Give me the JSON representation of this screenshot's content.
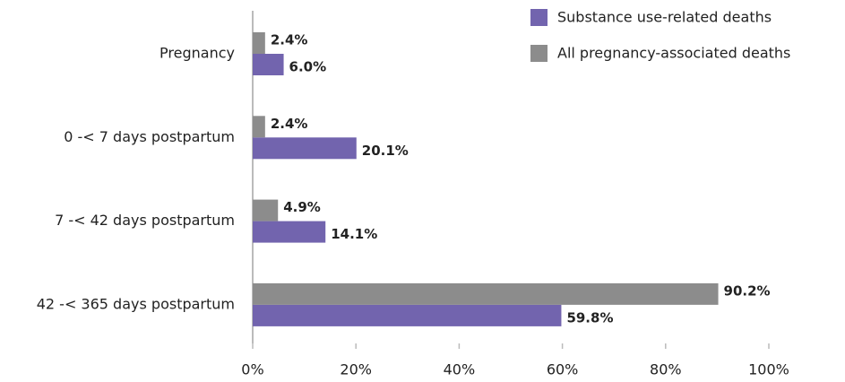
{
  "chart_data": {
    "type": "bar",
    "orientation": "horizontal",
    "categories": [
      "Pregnancy",
      "0 -< 7 days postpartum",
      "7 -< 42 days postpartum",
      "42 -< 365 days postpartum"
    ],
    "series": [
      {
        "name": "Substance use-related deaths",
        "color": "#7264ae",
        "values": [
          6.0,
          20.1,
          14.1,
          59.8
        ],
        "value_labels": [
          "6.0%",
          "20.1%",
          "14.1%",
          "59.8%"
        ]
      },
      {
        "name": "All pregnancy-associated deaths",
        "color": "#8c8c8c",
        "values": [
          2.4,
          2.4,
          4.9,
          90.2
        ],
        "value_labels": [
          "2.4%",
          "2.4%",
          "4.9%",
          "90.2%"
        ]
      }
    ],
    "xlim": [
      0,
      100
    ],
    "xticks": [
      {
        "value": 0,
        "label": "0%"
      },
      {
        "value": 20,
        "label": "20%"
      },
      {
        "value": 40,
        "label": "40%"
      },
      {
        "value": 60,
        "label": "60%"
      },
      {
        "value": 80,
        "label": "80%"
      },
      {
        "value": 100,
        "label": "100%"
      }
    ],
    "legend": "top-right"
  }
}
